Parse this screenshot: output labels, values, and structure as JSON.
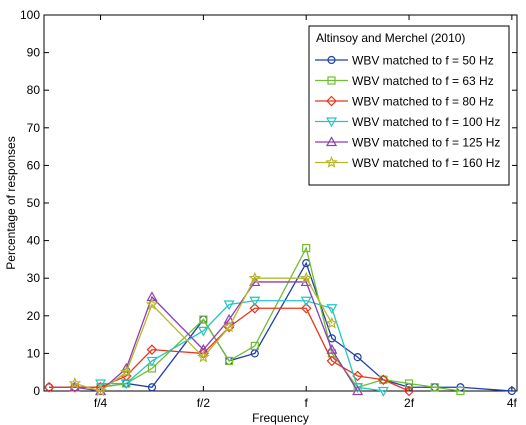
{
  "chart_data": {
    "type": "line",
    "xlabel": "Frequency",
    "ylabel": "Percentage of responses",
    "x_ticks": [
      {
        "pos": 1,
        "label": "f/4"
      },
      {
        "pos": 3,
        "label": "f/2"
      },
      {
        "pos": 5,
        "label": "f"
      },
      {
        "pos": 7,
        "label": "2f"
      },
      {
        "pos": 9,
        "label": "4f"
      }
    ],
    "xlim": [
      -0.1,
      9.1
    ],
    "ylim": [
      0,
      100
    ],
    "y_ticks": [
      0,
      10,
      20,
      30,
      40,
      50,
      60,
      70,
      80,
      90,
      100
    ],
    "grid": false,
    "legend": {
      "placement": "top-right",
      "title": "Altinsoy and Merchel (2010)"
    },
    "x": [
      0,
      0.5,
      1,
      1.5,
      2,
      2.5,
      3,
      3.5,
      4,
      4.5,
      5,
      5.5,
      6,
      6.5,
      7,
      7.5,
      8,
      8.5,
      9
    ],
    "series": [
      {
        "name": "WBV matched to f = 50 Hz",
        "color": "#1f3fa6",
        "marker": "circle",
        "values": [
          1,
          1,
          1,
          2,
          1,
          null,
          19,
          8,
          10,
          null,
          34,
          14,
          9,
          3,
          1,
          1,
          1,
          null,
          0
        ]
      },
      {
        "name": "WBV matched to f = 63 Hz",
        "color": "#6fbf2e",
        "marker": "square",
        "values": [
          null,
          1,
          1,
          2,
          6,
          null,
          19,
          8,
          12,
          null,
          38,
          10,
          1,
          3,
          2,
          1,
          0,
          null,
          null
        ]
      },
      {
        "name": "WBV matched to f = 80 Hz",
        "color": "#e8361c",
        "marker": "diamond",
        "values": [
          1,
          1,
          1,
          4,
          11,
          null,
          10,
          17,
          22,
          null,
          22,
          8,
          4,
          3,
          0,
          null,
          null,
          null,
          null
        ]
      },
      {
        "name": "WBV matched to f = 100 Hz",
        "color": "#27c4c4",
        "marker": "triangle-down",
        "values": [
          null,
          null,
          2,
          2,
          8,
          null,
          16,
          23,
          24,
          null,
          24,
          22,
          1,
          0,
          null,
          null,
          null,
          null,
          null
        ]
      },
      {
        "name": "WBV matched to f = 125 Hz",
        "color": "#8e3fb3",
        "marker": "triangle-up",
        "values": [
          null,
          1,
          0,
          6,
          25,
          null,
          11,
          19,
          29,
          null,
          29,
          11,
          0,
          null,
          null,
          null,
          null,
          null,
          null
        ]
      },
      {
        "name": "WBV matched to f = 160 Hz",
        "color": "#b8b82a",
        "marker": "star",
        "values": [
          null,
          2,
          0,
          5,
          23,
          null,
          9,
          17,
          30,
          null,
          30,
          18,
          null,
          null,
          null,
          null,
          null,
          null,
          null
        ]
      }
    ]
  }
}
